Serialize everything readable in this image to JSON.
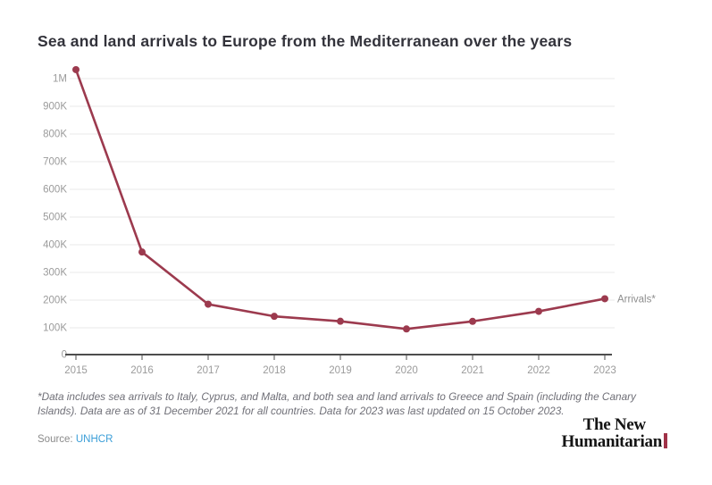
{
  "title": "Sea and land arrivals to Europe from the Mediterranean over the years",
  "chart_data": {
    "type": "line",
    "title": "Sea and land arrivals to Europe from the Mediterranean over the years",
    "categories": [
      "2015",
      "2016",
      "2017",
      "2018",
      "2019",
      "2020",
      "2021",
      "2022",
      "2023"
    ],
    "series": [
      {
        "name": "Arrivals*",
        "values": [
          1032408,
          373652,
          185139,
          141472,
          123663,
          95774,
          123318,
          159410,
          205000
        ]
      }
    ],
    "ylim": [
      0,
      1050000
    ],
    "ytick_values": [
      0,
      100000,
      200000,
      300000,
      400000,
      500000,
      600000,
      700000,
      800000,
      900000,
      1000000
    ],
    "ytick_labels": [
      "0",
      "100K",
      "200K",
      "300K",
      "400K",
      "500K",
      "600K",
      "700K",
      "800K",
      "900K",
      "1M"
    ],
    "grid": "horizontal",
    "legend_position": "end-of-line",
    "series_end_label": "Arrivals*",
    "line_color": "#9c3a4e",
    "grid_color": "#e8e8e8",
    "axis_color": "#4d4d4d",
    "tick_label_color": "#9b9b9b"
  },
  "footnote": "*Data includes sea arrivals to Italy, Cyprus, and Malta, and both sea and land arrivals to Greece and Spain (including the Canary Islands). Data are as of 31 December 2021 for all countries. Data for 2023 was last updated on 15 October 2023.",
  "source": {
    "label": "Source:",
    "link_text": "UNHCR"
  },
  "logo": {
    "line1": "The New",
    "line2": "Humanitarian",
    "bar_color": "#a03248"
  }
}
